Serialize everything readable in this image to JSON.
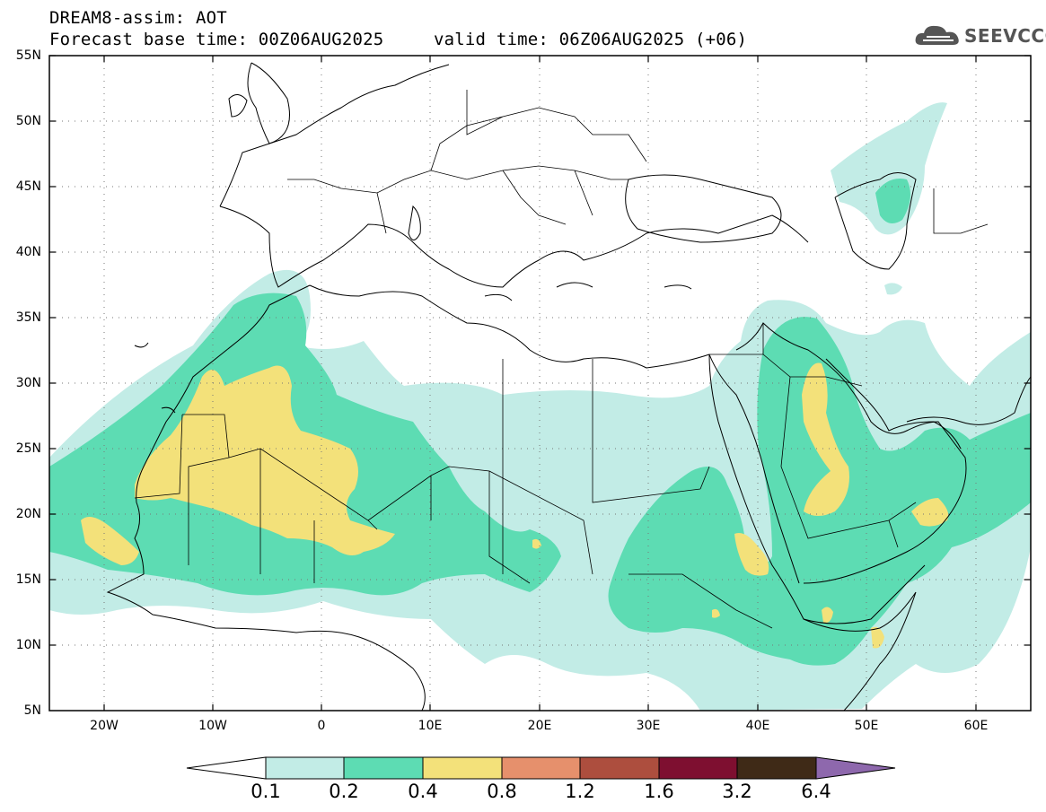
{
  "title": {
    "line1": "DREAM8-assim: AOT",
    "line2_base": "Forecast base time: 00Z06AUG2025",
    "line2_valid": "valid time: 06Z06AUG2025 (+06)"
  },
  "logo": {
    "text": "SEEVCCC",
    "icon": "cloud-icon"
  },
  "map": {
    "type": "contour-map",
    "lat_ticks": [
      "55N",
      "50N",
      "45N",
      "40N",
      "35N",
      "30N",
      "25N",
      "20N",
      "15N",
      "10N",
      "5N"
    ],
    "lon_ticks": [
      "20W",
      "10W",
      "0",
      "10E",
      "20E",
      "30E",
      "40E",
      "50E",
      "60E"
    ],
    "lon_range": [
      -25,
      65
    ],
    "lat_range": [
      5,
      55
    ],
    "grid": true
  },
  "colorbar": {
    "levels": [
      "0.1",
      "0.2",
      "0.4",
      "0.8",
      "1.2",
      "1.6",
      "3.2",
      "6.4"
    ],
    "colors": [
      "#ffffff",
      "#c2ece6",
      "#5ddcb3",
      "#f3e17a",
      "#e6906c",
      "#ad4e3e",
      "#7e0f30",
      "#3f2a17",
      "#8e68ad"
    ]
  },
  "chart_data": {
    "type": "heatmap",
    "variable": "AOT",
    "levels": [
      0.1,
      0.2,
      0.4,
      0.8,
      1.2,
      1.6,
      3.2,
      6.4
    ],
    "xlim": [
      -25,
      65
    ],
    "ylim": [
      5,
      55
    ]
  }
}
